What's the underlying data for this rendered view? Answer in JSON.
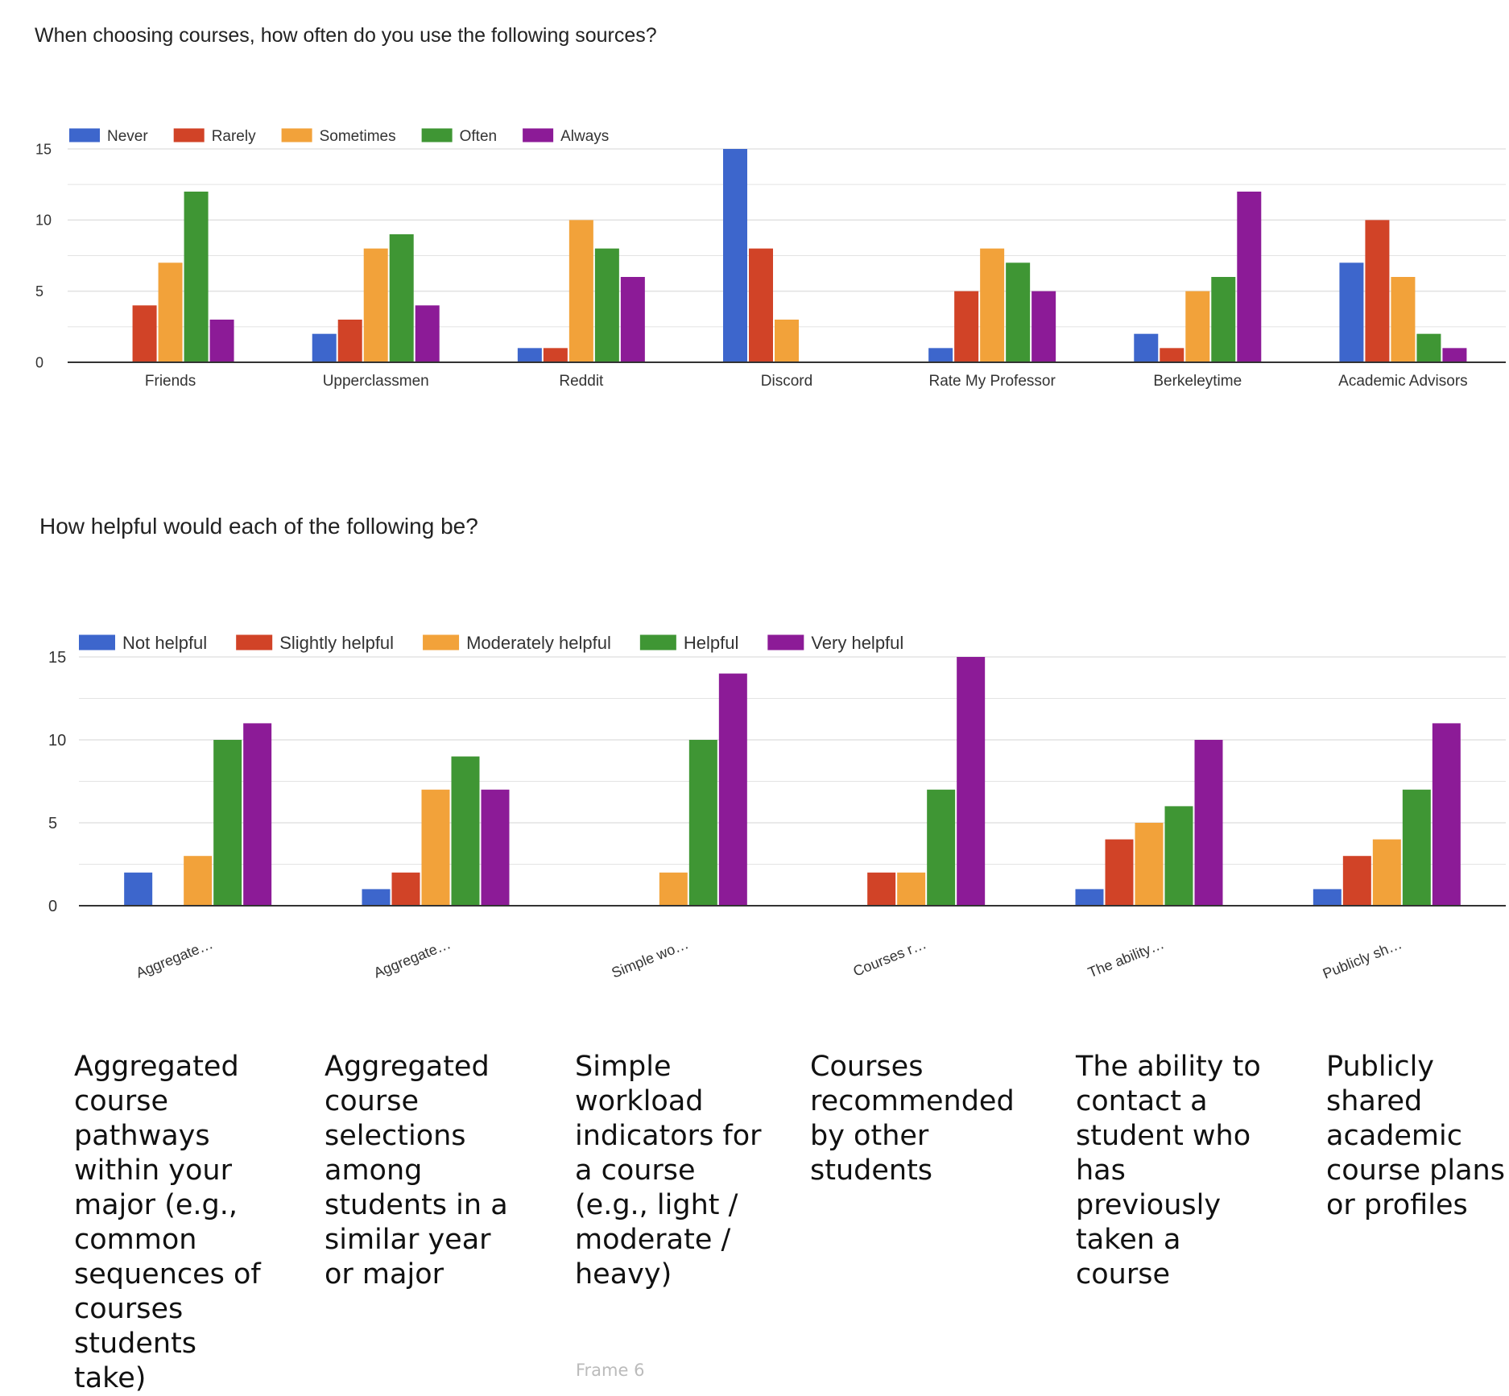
{
  "frame_label": "Frame 6",
  "colors": {
    "series": [
      "#3d66cc",
      "#d14327",
      "#f2a23a",
      "#3f9634",
      "#8c1b97"
    ],
    "grid": "#e3e3e3",
    "axis": "#333333"
  },
  "chart_data": [
    {
      "type": "bar",
      "title": "When choosing courses, how often do you use the following sources?",
      "legend_position": "top-left",
      "grid": true,
      "ylim": [
        0,
        15
      ],
      "yticks": [
        0,
        5,
        10,
        15
      ],
      "categories": [
        "Friends",
        "Upperclassmen",
        "Reddit",
        "Discord",
        "Rate My Professor",
        "Berkeleytime",
        "Academic Advisors"
      ],
      "series": [
        {
          "name": "Never",
          "values": [
            0,
            2,
            1,
            15,
            1,
            2,
            7
          ]
        },
        {
          "name": "Rarely",
          "values": [
            4,
            3,
            1,
            8,
            5,
            1,
            10
          ]
        },
        {
          "name": "Sometimes",
          "values": [
            7,
            8,
            10,
            3,
            8,
            5,
            6
          ]
        },
        {
          "name": "Often",
          "values": [
            12,
            9,
            8,
            0,
            7,
            6,
            2
          ]
        },
        {
          "name": "Always",
          "values": [
            3,
            4,
            6,
            0,
            5,
            12,
            1
          ]
        }
      ]
    },
    {
      "type": "bar",
      "title": "How helpful would each of the following be?",
      "legend_position": "top-left",
      "grid": true,
      "ylim": [
        0,
        15
      ],
      "yticks": [
        0,
        5,
        10,
        15
      ],
      "categories": [
        "Aggregate…",
        "Aggregate…",
        "Simple wo…",
        "Courses r…",
        "The ability…",
        "Publicly sh…"
      ],
      "series": [
        {
          "name": "Not helpful",
          "values": [
            2,
            1,
            0,
            0,
            1,
            1
          ]
        },
        {
          "name": "Slightly helpful",
          "values": [
            0,
            2,
            0,
            2,
            4,
            3
          ]
        },
        {
          "name": "Moderately helpful",
          "values": [
            3,
            7,
            2,
            2,
            5,
            4
          ]
        },
        {
          "name": "Helpful",
          "values": [
            10,
            9,
            10,
            7,
            6,
            7
          ]
        },
        {
          "name": "Very helpful",
          "values": [
            11,
            7,
            14,
            15,
            10,
            11
          ]
        }
      ]
    }
  ],
  "descriptions": [
    "Aggregated course pathways within your major (e.g., common sequences of courses students take)",
    "Aggregated course selections among students in a similar year or major",
    "Simple workload indicators for a course (e.g., light / moderate / heavy)",
    "Courses recommended by other students",
    "The ability to contact a student who has previously taken a course",
    "Publicly shared academic course plans or profiles"
  ]
}
